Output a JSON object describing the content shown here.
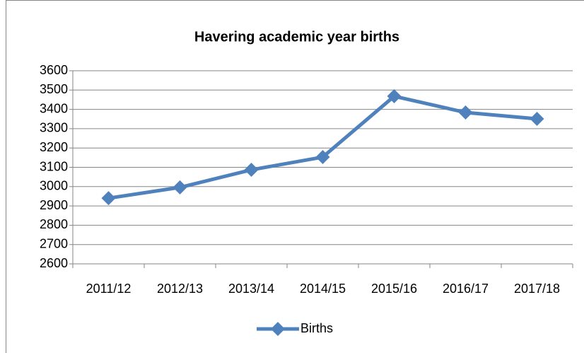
{
  "chart_data": {
    "type": "line",
    "title": "Havering academic year births",
    "categories": [
      "2011/12",
      "2012/13",
      "2013/14",
      "2014/15",
      "2015/16",
      "2016/17",
      "2017/18"
    ],
    "series": [
      {
        "name": "Births",
        "color": "#4f81bd",
        "values": [
          2940,
          2996,
          3087,
          3153,
          3468,
          3384,
          3351
        ]
      }
    ],
    "ylim": [
      2600,
      3600
    ],
    "yticks": [
      2600,
      2700,
      2800,
      2900,
      3000,
      3100,
      3200,
      3300,
      3400,
      3500,
      3600
    ],
    "grid": true,
    "legend": "bottom"
  }
}
